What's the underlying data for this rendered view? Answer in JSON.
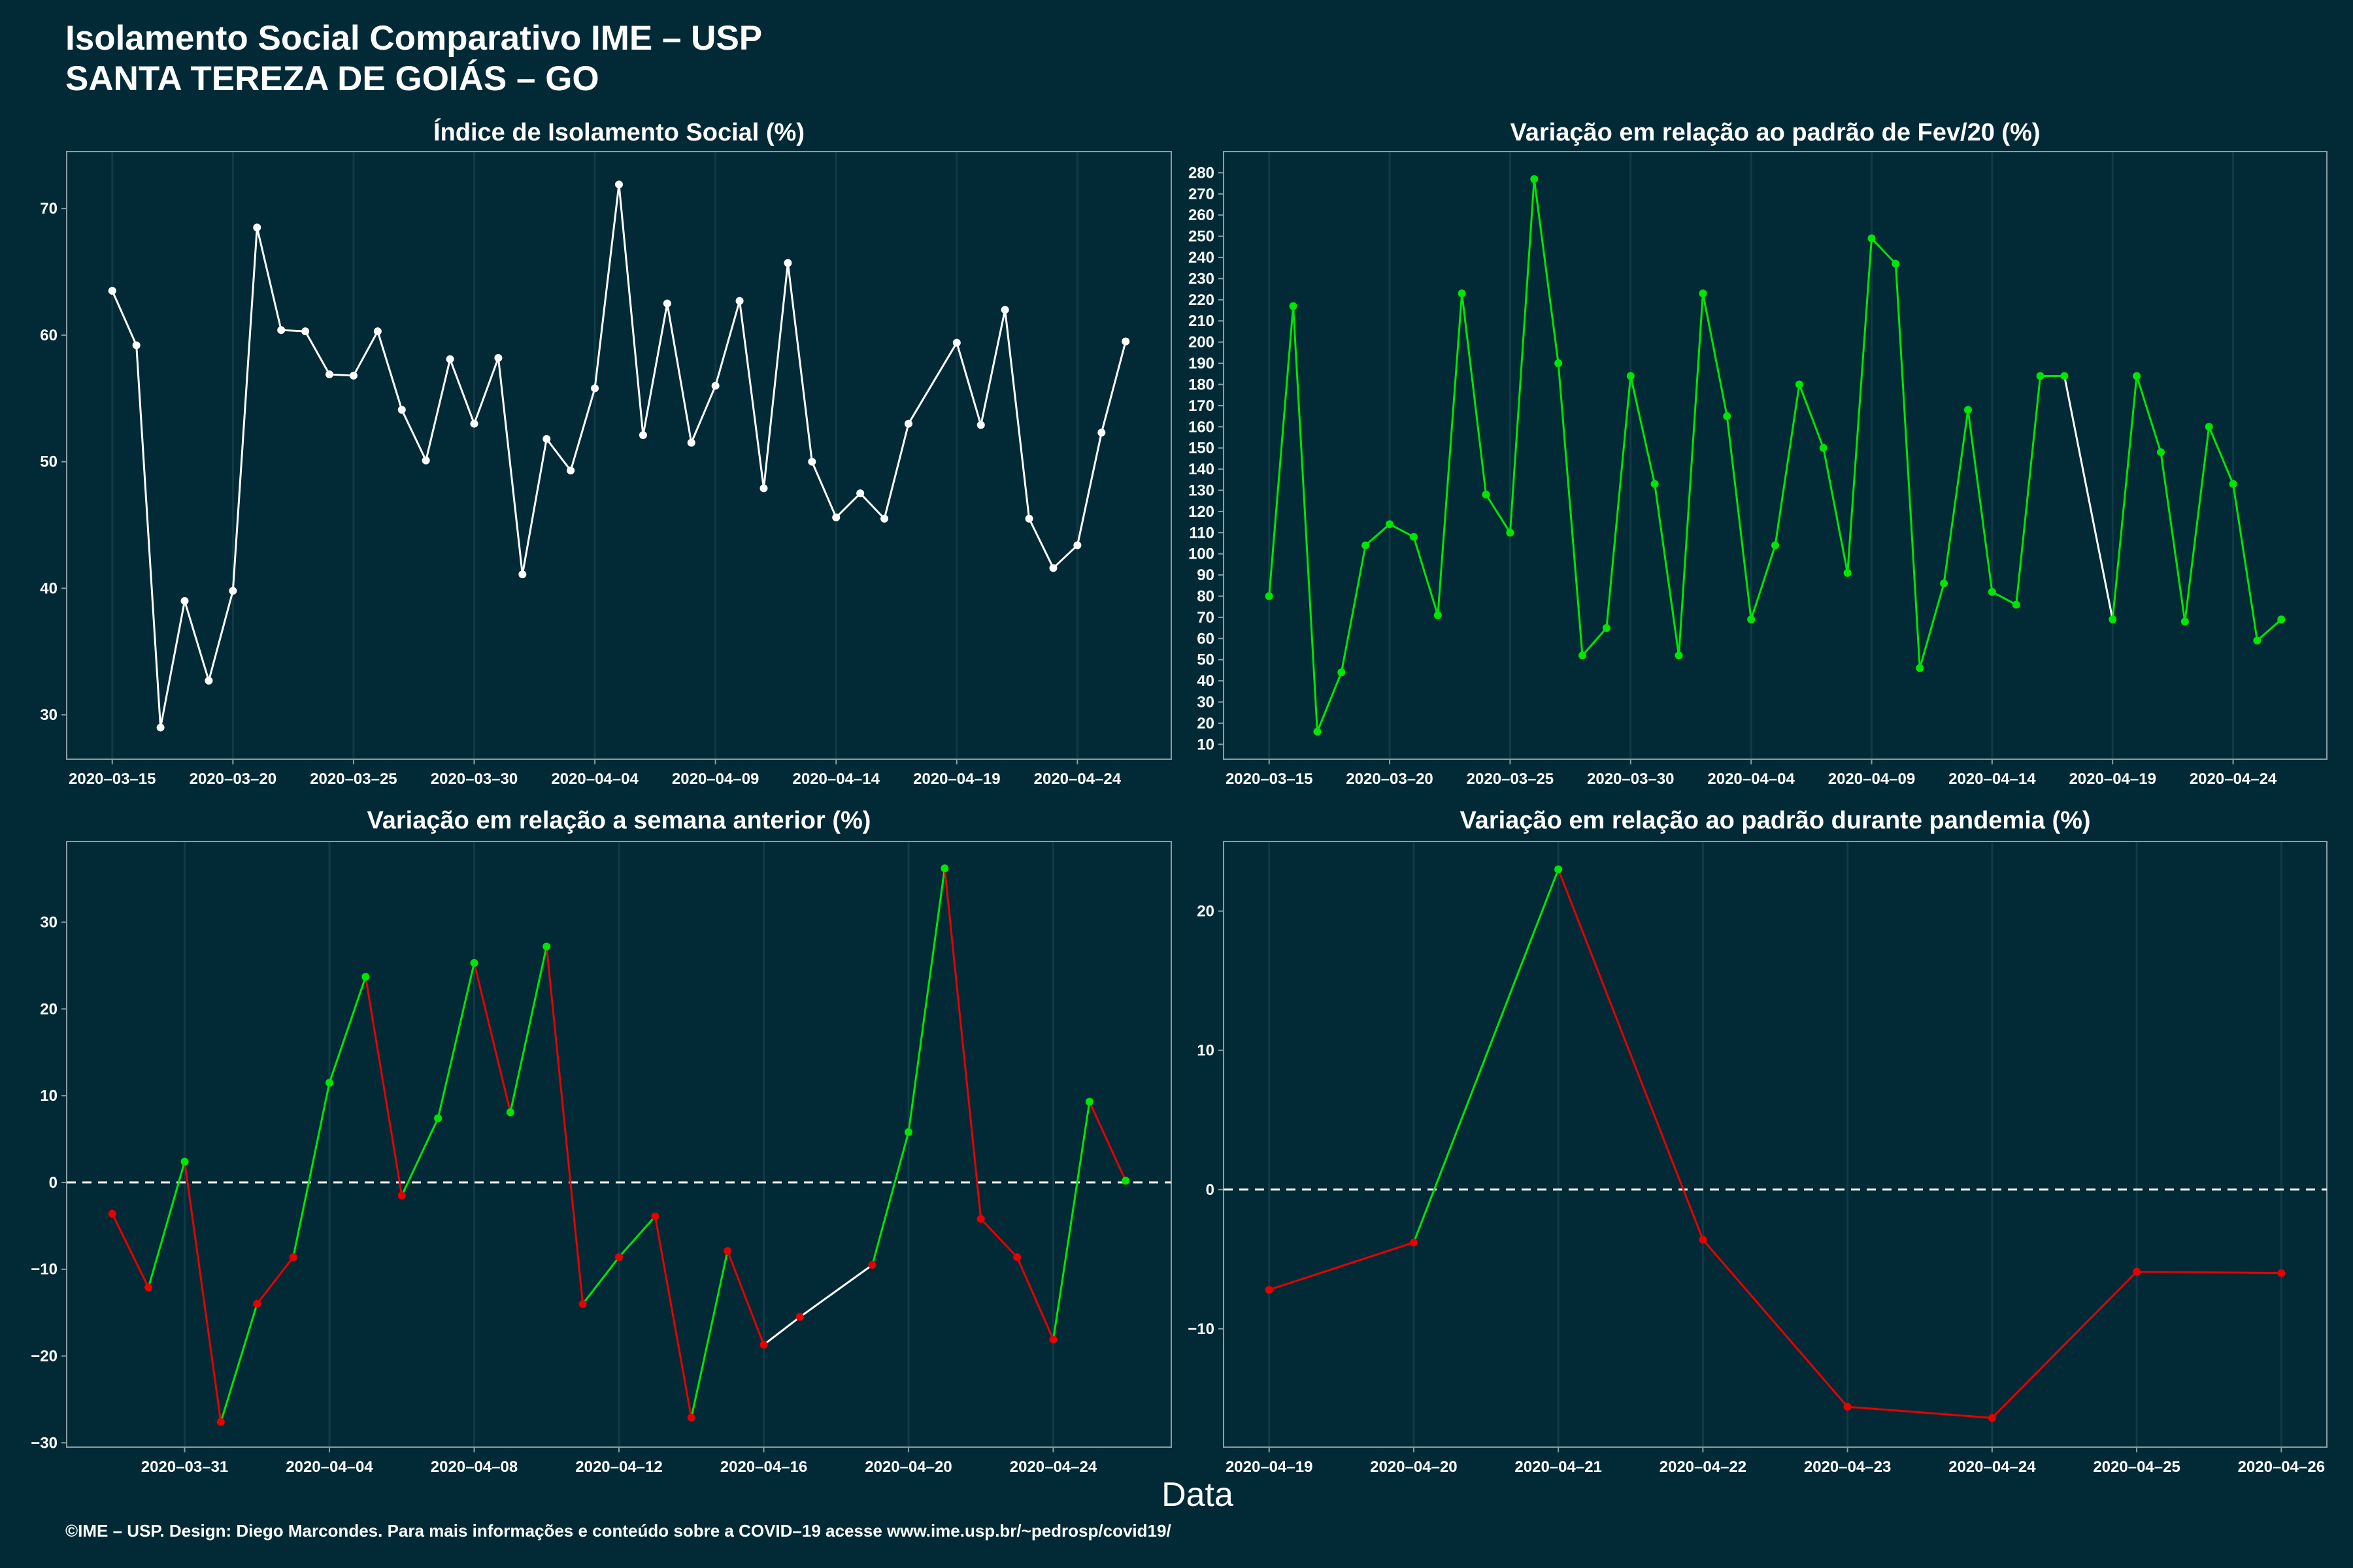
{
  "title": {
    "line1": "Isolamento Social Comparativo IME – USP",
    "line2": "SANTA TEREZA DE GOIÁS – GO"
  },
  "xlabel": "Data",
  "footer": "©IME – USP. Design: Diego Marcondes. Para mais informações e conteúdo sobre a COVID–19 acesse www.ime.usp.br/~pedrosp/covid19/",
  "colors": {
    "background": "#022a36",
    "line_default": "#ffffff",
    "increase": "#00e600",
    "decrease": "#e60000",
    "grid": "#0f3a46"
  },
  "chart_data": [
    {
      "type": "line",
      "title": "Índice de Isolamento Social (%)",
      "x": [
        "2020-03-15",
        "2020-03-16",
        "2020-03-17",
        "2020-03-18",
        "2020-03-19",
        "2020-03-20",
        "2020-03-21",
        "2020-03-22",
        "2020-03-23",
        "2020-03-24",
        "2020-03-25",
        "2020-03-26",
        "2020-03-27",
        "2020-03-28",
        "2020-03-29",
        "2020-03-30",
        "2020-03-31",
        "2020-04-01",
        "2020-04-02",
        "2020-04-03",
        "2020-04-04",
        "2020-04-05",
        "2020-04-06",
        "2020-04-07",
        "2020-04-08",
        "2020-04-09",
        "2020-04-10",
        "2020-04-11",
        "2020-04-12",
        "2020-04-13",
        "2020-04-14",
        "2020-04-15",
        "2020-04-16",
        "2020-04-17",
        "2020-04-19",
        "2020-04-20",
        "2020-04-21",
        "2020-04-22",
        "2020-04-23",
        "2020-04-24",
        "2020-04-25",
        "2020-04-26"
      ],
      "y": [
        63.5,
        59.2,
        29.0,
        39.0,
        32.7,
        39.8,
        68.5,
        60.4,
        60.3,
        56.9,
        56.8,
        60.3,
        54.1,
        50.1,
        58.1,
        53.0,
        58.2,
        41.1,
        51.8,
        49.3,
        55.8,
        71.9,
        52.1,
        62.5,
        51.5,
        56.0,
        62.7,
        47.9,
        65.7,
        50.0,
        45.6,
        47.5,
        45.5,
        53.0,
        59.4,
        52.9,
        62.0,
        45.5,
        41.6,
        43.4,
        52.3,
        59.5
      ],
      "segment_colors": [
        "default"
      ],
      "xticks": [
        "2020-03-15",
        "2020-03-20",
        "2020-03-25",
        "2020-03-30",
        "2020-04-04",
        "2020-04-09",
        "2020-04-14",
        "2020-04-19",
        "2020-04-24"
      ],
      "yticks": [
        30,
        40,
        50,
        60,
        70
      ],
      "ylim": [
        26.5,
        74.5
      ],
      "hline": null
    },
    {
      "type": "line",
      "title": "Variação em relação ao padrão de Fev/20 (%)",
      "x": [
        "2020-03-15",
        "2020-03-16",
        "2020-03-17",
        "2020-03-18",
        "2020-03-19",
        "2020-03-20",
        "2020-03-21",
        "2020-03-22",
        "2020-03-23",
        "2020-03-24",
        "2020-03-25",
        "2020-03-26",
        "2020-03-27",
        "2020-03-28",
        "2020-03-29",
        "2020-03-30",
        "2020-03-31",
        "2020-04-01",
        "2020-04-02",
        "2020-04-03",
        "2020-04-04",
        "2020-04-05",
        "2020-04-06",
        "2020-04-07",
        "2020-04-08",
        "2020-04-09",
        "2020-04-10",
        "2020-04-11",
        "2020-04-12",
        "2020-04-13",
        "2020-04-14",
        "2020-04-15",
        "2020-04-16",
        "2020-04-17",
        "2020-04-19",
        "2020-04-20",
        "2020-04-21",
        "2020-04-22",
        "2020-04-23",
        "2020-04-24",
        "2020-04-25",
        "2020-04-26"
      ],
      "y": [
        80,
        217,
        16,
        44,
        104,
        114,
        108,
        71,
        223,
        128,
        110,
        277,
        190,
        52,
        65,
        184,
        133,
        52,
        223,
        165,
        69,
        104,
        180,
        150,
        91,
        249,
        237,
        46,
        86,
        168,
        82,
        76,
        184,
        184,
        69,
        184,
        148,
        68,
        160,
        133,
        59,
        69
      ],
      "point_color": "increase",
      "segment_color": "increase",
      "special_segments": [
        {
          "from": "2020-04-17",
          "to": "2020-04-19",
          "color": "default"
        }
      ],
      "xticks": [
        "2020-03-15",
        "2020-03-20",
        "2020-03-25",
        "2020-03-30",
        "2020-04-04",
        "2020-04-09",
        "2020-04-14",
        "2020-04-19",
        "2020-04-24"
      ],
      "yticks": [
        10,
        20,
        30,
        40,
        50,
        60,
        70,
        80,
        90,
        100,
        110,
        120,
        130,
        140,
        150,
        160,
        170,
        180,
        190,
        200,
        210,
        220,
        230,
        240,
        250,
        260,
        270,
        280
      ],
      "ylim": [
        3,
        290
      ],
      "hline": null
    },
    {
      "type": "line",
      "title": "Variação em relação a semana anterior (%)",
      "x": [
        "2020-03-29",
        "2020-03-30",
        "2020-03-31",
        "2020-04-01",
        "2020-04-02",
        "2020-04-03",
        "2020-04-04",
        "2020-04-05",
        "2020-04-06",
        "2020-04-07",
        "2020-04-08",
        "2020-04-09",
        "2020-04-10",
        "2020-04-11",
        "2020-04-12",
        "2020-04-13",
        "2020-04-14",
        "2020-04-15",
        "2020-04-16",
        "2020-04-17",
        "2020-04-19",
        "2020-04-20",
        "2020-04-21",
        "2020-04-22",
        "2020-04-23",
        "2020-04-24",
        "2020-04-25",
        "2020-04-26"
      ],
      "y": [
        -3.6,
        -12.1,
        2.4,
        -27.6,
        -14.0,
        -8.6,
        11.5,
        23.7,
        -1.5,
        7.4,
        25.3,
        8.1,
        27.2,
        -14.0,
        -8.6,
        -3.9,
        -27.1,
        -7.9,
        -18.7,
        -15.5,
        -9.5,
        5.8,
        36.2,
        -4.2,
        -8.6,
        -18.1,
        9.3,
        0.2
      ],
      "segment_colors": [
        "decrease",
        "increase",
        "decrease",
        "increase",
        "decrease",
        "increase",
        "increase",
        "decrease",
        "increase",
        "increase",
        "decrease",
        "increase",
        "decrease",
        "increase",
        "increase",
        "decrease",
        "increase",
        "decrease",
        "default",
        "default",
        "increase",
        "increase",
        "decrease",
        "decrease",
        "decrease",
        "increase",
        "decrease"
      ],
      "point_colors": [
        "decrease",
        "decrease",
        "increase",
        "decrease",
        "decrease",
        "decrease",
        "increase",
        "increase",
        "decrease",
        "increase",
        "increase",
        "increase",
        "increase",
        "decrease",
        "decrease",
        "decrease",
        "decrease",
        "decrease",
        "decrease",
        "decrease",
        "decrease",
        "increase",
        "increase",
        "decrease",
        "decrease",
        "decrease",
        "increase",
        "increase"
      ],
      "xticks": [
        "2020-03-31",
        "2020-04-04",
        "2020-04-08",
        "2020-04-12",
        "2020-04-16",
        "2020-04-20",
        "2020-04-24"
      ],
      "yticks": [
        -30,
        -20,
        -10,
        0,
        10,
        20,
        30
      ],
      "ylim": [
        -30.5,
        39.3
      ],
      "hline": 0
    },
    {
      "type": "line",
      "title": "Variação em relação ao padrão durante pandemia (%)",
      "x": [
        "2020-04-19",
        "2020-04-20",
        "2020-04-21",
        "2020-04-22",
        "2020-04-23",
        "2020-04-24",
        "2020-04-25",
        "2020-04-26"
      ],
      "y": [
        -7.2,
        -3.8,
        23.0,
        -3.6,
        -15.6,
        -16.4,
        -5.9,
        -6.0
      ],
      "segment_colors": [
        "decrease",
        "increase",
        "decrease",
        "decrease",
        "decrease",
        "decrease",
        "decrease"
      ],
      "point_colors": [
        "decrease",
        "decrease",
        "increase",
        "decrease",
        "decrease",
        "decrease",
        "decrease",
        "decrease"
      ],
      "xticks": [
        "2020-04-19",
        "2020-04-20",
        "2020-04-21",
        "2020-04-22",
        "2020-04-23",
        "2020-04-24",
        "2020-04-25",
        "2020-04-26"
      ],
      "yticks": [
        -10,
        0,
        10,
        20
      ],
      "ylim": [
        -18.5,
        25.0
      ],
      "hline": 0
    }
  ]
}
